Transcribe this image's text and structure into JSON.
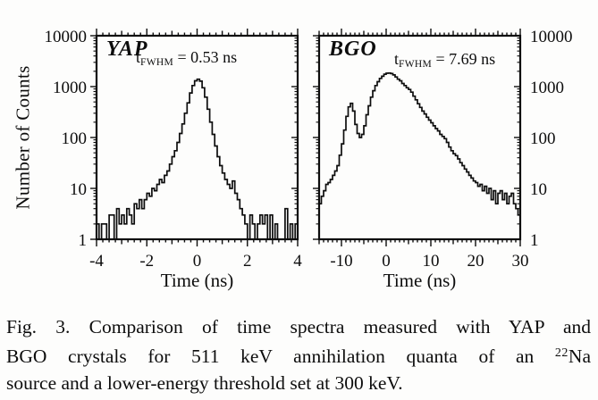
{
  "figure": {
    "y_axis_title": "Number of Counts",
    "colors": {
      "ink": "#0d0d0d",
      "paper": "#fdfdfc"
    }
  },
  "caption": {
    "line1": "Fig. 3. Comparison of time spectra measured with YAP and",
    "line2_pre": "BGO crystals for 511 keV annihilation quanta of an ",
    "line2_sup": "22",
    "line2_post": "Na",
    "line3": "source and a lower-energy threshold set at 300 keV."
  },
  "chart_data": [
    {
      "type": "line",
      "style": "histogram-step",
      "title": "YAP",
      "fwhm": {
        "pre": "t",
        "sub": "FWHM",
        "post": " = 0.53 ns"
      },
      "xlabel": "Time (ns)",
      "ylabel": "Number of Counts",
      "yscale": "log",
      "xlim": [
        -4,
        4
      ],
      "ylim": [
        1,
        10000
      ],
      "x_ticks_labeled": [
        -4,
        -2,
        0,
        2,
        4
      ],
      "x_tick_major": 1,
      "x_tick_minor": 0.25,
      "y_ticks_labeled": [
        1,
        10,
        100,
        1000,
        10000
      ],
      "y_label_side": "left",
      "histogram": {
        "bin_start": -4.0,
        "bin_width": 0.1,
        "counts": [
          2,
          1,
          2,
          2,
          1,
          3,
          3,
          1,
          4,
          2,
          3,
          2,
          4,
          3,
          2,
          5,
          4,
          6,
          4,
          6,
          8,
          7,
          10,
          9,
          12,
          15,
          13,
          18,
          22,
          30,
          42,
          55,
          80,
          120,
          185,
          300,
          480,
          750,
          1050,
          1300,
          1400,
          1280,
          950,
          620,
          360,
          200,
          115,
          68,
          42,
          28,
          20,
          15,
          12,
          10,
          14,
          8,
          6,
          4,
          3,
          2,
          1,
          3,
          2,
          1,
          2,
          3,
          2,
          3,
          1,
          3,
          1,
          2,
          1,
          1,
          1,
          4,
          1,
          2,
          1,
          2
        ]
      }
    },
    {
      "type": "line",
      "style": "histogram-step",
      "title": "BGO",
      "fwhm": {
        "pre": "t",
        "sub": "FWHM",
        "post": " = 7.69 ns"
      },
      "xlabel": "Time (ns)",
      "ylabel": "Number of Counts",
      "yscale": "log",
      "xlim": [
        -15,
        30
      ],
      "ylim": [
        1,
        10000
      ],
      "x_ticks_labeled": [
        -10,
        0,
        10,
        20,
        30
      ],
      "x_tick_major": 5,
      "x_tick_minor": 1,
      "y_ticks_labeled": [
        1,
        10,
        100,
        1000,
        10000
      ],
      "y_label_side": "right",
      "histogram": {
        "bin_start": -15.0,
        "bin_width": 0.5,
        "counts": [
          5,
          7,
          9,
          12,
          13,
          15,
          18,
          22,
          28,
          45,
          75,
          140,
          260,
          400,
          470,
          330,
          180,
          120,
          100,
          115,
          170,
          280,
          420,
          620,
          830,
          1050,
          1250,
          1450,
          1600,
          1750,
          1830,
          1850,
          1800,
          1700,
          1550,
          1400,
          1300,
          1150,
          1050,
          950,
          880,
          780,
          650,
          550,
          460,
          390,
          330,
          290,
          250,
          220,
          195,
          170,
          150,
          135,
          115,
          105,
          95,
          80,
          65,
          55,
          48,
          44,
          38,
          32,
          28,
          24,
          21,
          18,
          16,
          14,
          13,
          11,
          12,
          9,
          11,
          8,
          10,
          6,
          9,
          5,
          8,
          9,
          6,
          8,
          5,
          7,
          8,
          5,
          4,
          3
        ]
      }
    }
  ]
}
